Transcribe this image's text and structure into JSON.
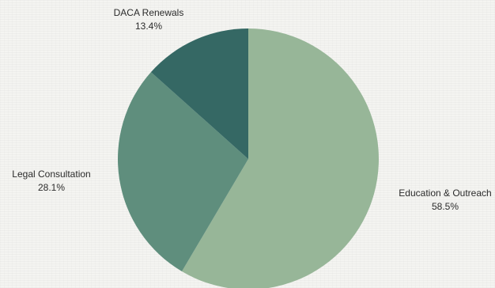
{
  "chart_data": {
    "type": "pie",
    "categories": [
      "Education & Outreach",
      "Legal Consultation",
      "DACA Renewals"
    ],
    "values": [
      58.5,
      28.1,
      13.4
    ],
    "value_labels": [
      "58.5%",
      "28.1%",
      "13.4%"
    ],
    "colors": [
      "#97b698",
      "#5f8e7d",
      "#356864"
    ],
    "start_angle": "12 o'clock",
    "direction": "clockwise",
    "legend": "none"
  }
}
